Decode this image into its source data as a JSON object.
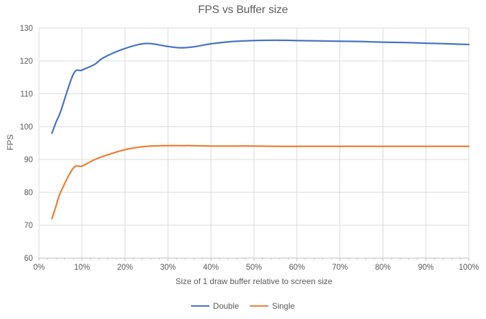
{
  "chart_data": {
    "type": "line",
    "title": "FPS vs Buffer size",
    "xlabel": "Size of 1 draw buffer relative to screen size",
    "ylabel": "FPS",
    "xlim": [
      0,
      100
    ],
    "ylim": [
      60,
      130
    ],
    "grid": true,
    "legend_position": "bottom",
    "x_major_ticks": [
      0,
      10,
      20,
      30,
      40,
      50,
      60,
      70,
      80,
      90,
      100
    ],
    "x_tick_labels": [
      "0%",
      "10%",
      "20%",
      "30%",
      "40%",
      "50%",
      "60%",
      "70%",
      "80%",
      "90%",
      "100%"
    ],
    "x_minor_tick_step": 2,
    "y_ticks": [
      60,
      70,
      80,
      90,
      100,
      110,
      120,
      130
    ],
    "y_tick_labels": [
      "60",
      "70",
      "80",
      "90",
      "100",
      "110",
      "120",
      "130"
    ],
    "x": [
      3,
      4,
      5,
      8,
      10,
      13,
      15,
      20,
      25,
      30,
      33,
      36,
      40,
      45,
      50,
      55,
      60,
      65,
      70,
      75,
      80,
      85,
      90,
      95,
      100
    ],
    "series": [
      {
        "name": "Double",
        "color": "#4472C4",
        "values": [
          98,
          101.5,
          104.5,
          116,
          117.2,
          119,
          121,
          123.8,
          125.3,
          124.4,
          124,
          124.3,
          125.2,
          125.9,
          126.2,
          126.3,
          126.2,
          126.1,
          126,
          125.9,
          125.7,
          125.6,
          125.4,
          125.2,
          125
        ]
      },
      {
        "name": "Single",
        "color": "#ED7D31",
        "values": [
          72,
          76,
          80,
          87.4,
          88,
          90,
          91,
          93,
          94,
          94.2,
          94.2,
          94.2,
          94.1,
          94.1,
          94.1,
          94,
          94,
          94,
          94,
          94,
          94,
          94,
          94,
          94,
          94
        ]
      }
    ]
  },
  "colors": {
    "gridline": "#D9D9D9",
    "plot_border": "#D9D9D9",
    "axis_line": "#BFBFBF",
    "tick": "#BFBFBF",
    "label_text": "#595959",
    "background": "#FFFFFF"
  }
}
